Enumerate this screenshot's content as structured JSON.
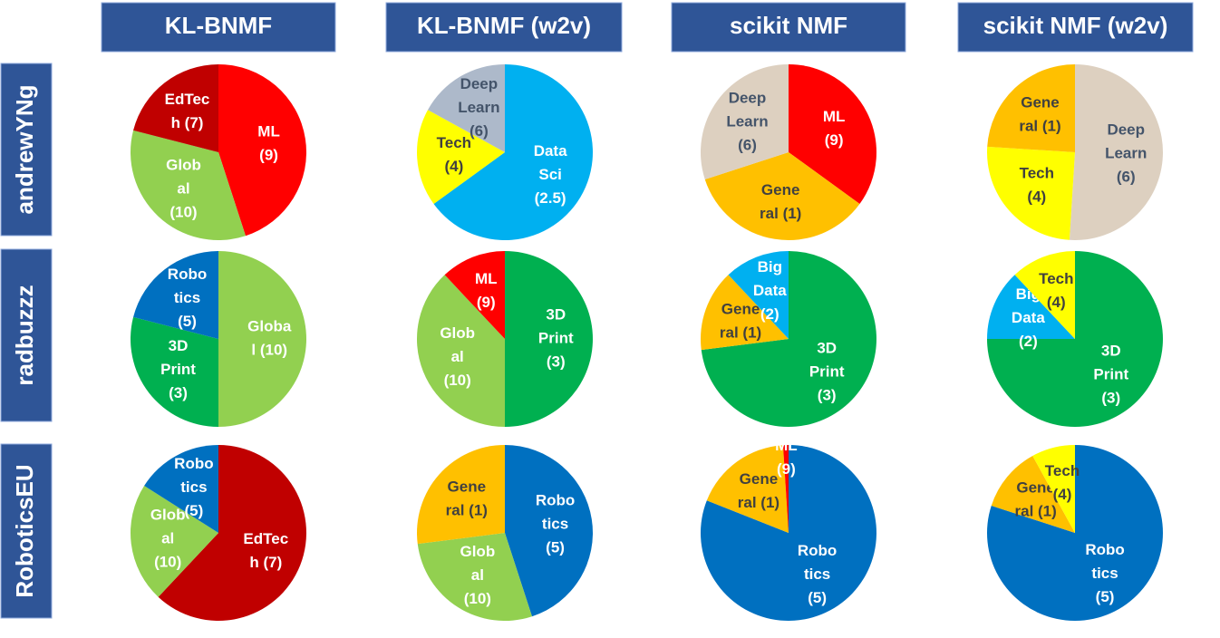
{
  "columns": [
    "KL-BNMF",
    "KL-BNMF (w2v)",
    "scikit NMF",
    "scikit NMF (w2v)"
  ],
  "rows": [
    "andrewYNg",
    "radbuzzz",
    "RoboticsEU"
  ],
  "chart_data": [
    {
      "type": "pie",
      "labels": [
        [
          "ML",
          "(9)"
        ],
        [
          "Glob",
          "al",
          "(10)"
        ],
        [
          "EdTec",
          "h (7)"
        ]
      ],
      "values": [
        45,
        34,
        21
      ],
      "colors": [
        "#ff0000",
        "#92d050",
        "#c00000"
      ]
    },
    {
      "type": "pie",
      "labels": [
        [
          "Data",
          "Sci",
          "(2.5)"
        ],
        [
          "Tech",
          "(4)"
        ],
        [
          "Deep",
          "Learn",
          "(6)"
        ]
      ],
      "values": [
        65,
        18,
        17
      ],
      "colors": [
        "#00b0f0",
        "#ffff00",
        "#adb9ca"
      ]
    },
    {
      "type": "pie",
      "labels": [
        [
          "ML",
          "(9)"
        ],
        [
          "Gene",
          "ral (1)"
        ],
        [
          "Deep",
          "Learn",
          "(6)"
        ]
      ],
      "values": [
        35,
        35,
        30
      ],
      "colors": [
        "#ff0000",
        "#ffc000",
        "#ddd0c0"
      ]
    },
    {
      "type": "pie",
      "labels": [
        [
          "Deep",
          "Learn",
          "(6)"
        ],
        [
          "Tech",
          "(4)"
        ],
        [
          "Gene",
          "ral (1)"
        ]
      ],
      "values": [
        51,
        25,
        24
      ],
      "colors": [
        "#ddd0c0",
        "#ffff00",
        "#ffc000"
      ]
    },
    {
      "type": "pie",
      "labels": [
        [
          "Globa",
          "l (10)"
        ],
        [
          "3D",
          "Print",
          "(3)"
        ],
        [
          "Robo",
          "tics",
          "(5)"
        ]
      ],
      "values": [
        50,
        29,
        21
      ],
      "colors": [
        "#92d050",
        "#00b050",
        "#0070c0"
      ]
    },
    {
      "type": "pie",
      "labels": [
        [
          "3D",
          "Print",
          "(3)"
        ],
        [
          "Glob",
          "al",
          "(10)"
        ],
        [
          "ML",
          "(9)"
        ]
      ],
      "values": [
        50,
        38,
        12
      ],
      "colors": [
        "#00b050",
        "#92d050",
        "#ff0000"
      ]
    },
    {
      "type": "pie",
      "labels": [
        [
          "3D",
          "Print",
          "(3)"
        ],
        [
          "Gene",
          "ral (1)"
        ],
        [
          "Big",
          "Data",
          "(2)"
        ]
      ],
      "values": [
        73,
        15,
        12
      ],
      "colors": [
        "#00b050",
        "#ffc000",
        "#00b0f0"
      ]
    },
    {
      "type": "pie",
      "labels": [
        [
          "3D",
          "Print",
          "(3)"
        ],
        [
          "Big",
          "Data",
          "(2)"
        ],
        [
          "Tech",
          "(4)"
        ]
      ],
      "values": [
        75,
        13,
        12
      ],
      "colors": [
        "#00b050",
        "#00b0f0",
        "#ffff00"
      ]
    },
    {
      "type": "pie",
      "labels": [
        [
          "EdTec",
          "h (7)"
        ],
        [
          "Glob",
          "al",
          "(10)"
        ],
        [
          "Robo",
          "tics",
          "(5)"
        ]
      ],
      "values": [
        62,
        22,
        16
      ],
      "colors": [
        "#c00000",
        "#92d050",
        "#0070c0"
      ]
    },
    {
      "type": "pie",
      "labels": [
        [
          "Robo",
          "tics",
          "(5)"
        ],
        [
          "Glob",
          "al",
          "(10)"
        ],
        [
          "Gene",
          "ral (1)"
        ]
      ],
      "values": [
        45,
        28,
        27
      ],
      "colors": [
        "#0070c0",
        "#92d050",
        "#ffc000"
      ]
    },
    {
      "type": "pie",
      "labels": [
        [
          "Robo",
          "tics",
          "(5)"
        ],
        [
          "Gene",
          "ral (1)"
        ],
        [
          "ML",
          "(9)"
        ]
      ],
      "values": [
        81,
        18,
        1
      ],
      "colors": [
        "#0070c0",
        "#ffc000",
        "#ff0000"
      ]
    },
    {
      "type": "pie",
      "labels": [
        [
          "Robo",
          "tics",
          "(5)"
        ],
        [
          "Gene",
          "ral (1)"
        ],
        [
          "Tech",
          "(4)"
        ]
      ],
      "values": [
        80,
        12,
        8
      ],
      "colors": [
        "#0070c0",
        "#ffc000",
        "#ffff00"
      ]
    }
  ]
}
